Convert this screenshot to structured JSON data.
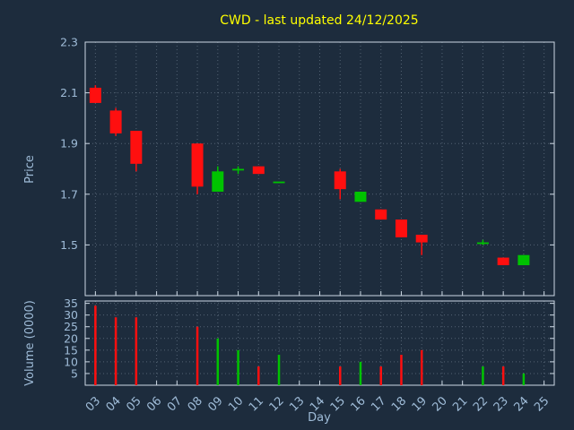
{
  "title": "CWD - last updated 24/12/2025",
  "colors": {
    "background": "#1d2c3d",
    "title": "#ffff00",
    "axis_text": "#9fbcd8",
    "grid": "#c8d7e6",
    "border": "#cdd9e5",
    "up": "#00c300",
    "down": "#ff0f0f"
  },
  "chart_data": [
    {
      "type": "candlestick",
      "title": "CWD - last updated 24/12/2025",
      "xlabel": "Day",
      "ylabel": "Price",
      "ylim": [
        1.3,
        2.3
      ],
      "yticks": [
        1.5,
        1.7,
        1.9,
        2.1,
        2.3
      ],
      "grid": "on",
      "x_days": [
        "03",
        "04",
        "05",
        "06",
        "07",
        "08",
        "09",
        "10",
        "11",
        "12",
        "13",
        "14",
        "15",
        "16",
        "17",
        "18",
        "19",
        "20",
        "21",
        "22",
        "23",
        "24",
        "25"
      ],
      "candles": [
        {
          "day": "03",
          "open": 2.12,
          "high": 2.13,
          "low": 2.06,
          "close": 2.06
        },
        {
          "day": "04",
          "open": 2.03,
          "high": 2.04,
          "low": 1.93,
          "close": 1.94
        },
        {
          "day": "05",
          "open": 1.95,
          "high": 1.95,
          "low": 1.79,
          "close": 1.82
        },
        {
          "day": "08",
          "open": 1.9,
          "high": 1.9,
          "low": 1.7,
          "close": 1.73
        },
        {
          "day": "09",
          "open": 1.71,
          "high": 1.81,
          "low": 1.71,
          "close": 1.79
        },
        {
          "day": "10",
          "open": 1.8,
          "high": 1.81,
          "low": 1.78,
          "close": 1.8
        },
        {
          "day": "11",
          "open": 1.81,
          "high": 1.81,
          "low": 1.78,
          "close": 1.78
        },
        {
          "day": "12",
          "open": 1.75,
          "high": 1.75,
          "low": 1.75,
          "close": 1.75
        },
        {
          "day": "15",
          "open": 1.79,
          "high": 1.8,
          "low": 1.68,
          "close": 1.72
        },
        {
          "day": "16",
          "open": 1.67,
          "high": 1.71,
          "low": 1.67,
          "close": 1.71
        },
        {
          "day": "17",
          "open": 1.64,
          "high": 1.64,
          "low": 1.6,
          "close": 1.6
        },
        {
          "day": "18",
          "open": 1.6,
          "high": 1.6,
          "low": 1.53,
          "close": 1.53
        },
        {
          "day": "19",
          "open": 1.54,
          "high": 1.54,
          "low": 1.46,
          "close": 1.51
        },
        {
          "day": "22",
          "open": 1.51,
          "high": 1.52,
          "low": 1.5,
          "close": 1.51
        },
        {
          "day": "23",
          "open": 1.45,
          "high": 1.45,
          "low": 1.42,
          "close": 1.42
        },
        {
          "day": "24",
          "open": 1.42,
          "high": 1.46,
          "low": 1.42,
          "close": 1.46
        }
      ]
    },
    {
      "type": "bar",
      "ylabel": "Volume (0000)",
      "ylim": [
        0,
        36
      ],
      "yticks": [
        5,
        10,
        15,
        20,
        25,
        30,
        35
      ],
      "bars": [
        {
          "day": "03",
          "value": 34,
          "dir": "down"
        },
        {
          "day": "04",
          "value": 29,
          "dir": "down"
        },
        {
          "day": "05",
          "value": 29,
          "dir": "down"
        },
        {
          "day": "08",
          "value": 25,
          "dir": "down"
        },
        {
          "day": "09",
          "value": 20,
          "dir": "up"
        },
        {
          "day": "10",
          "value": 15,
          "dir": "up"
        },
        {
          "day": "11",
          "value": 8,
          "dir": "down"
        },
        {
          "day": "12",
          "value": 13,
          "dir": "up"
        },
        {
          "day": "15",
          "value": 8,
          "dir": "down"
        },
        {
          "day": "16",
          "value": 10,
          "dir": "up"
        },
        {
          "day": "17",
          "value": 8,
          "dir": "down"
        },
        {
          "day": "18",
          "value": 13,
          "dir": "down"
        },
        {
          "day": "19",
          "value": 15,
          "dir": "down"
        },
        {
          "day": "22",
          "value": 8,
          "dir": "up"
        },
        {
          "day": "23",
          "value": 8,
          "dir": "down"
        },
        {
          "day": "24",
          "value": 5,
          "dir": "up"
        }
      ]
    }
  ]
}
